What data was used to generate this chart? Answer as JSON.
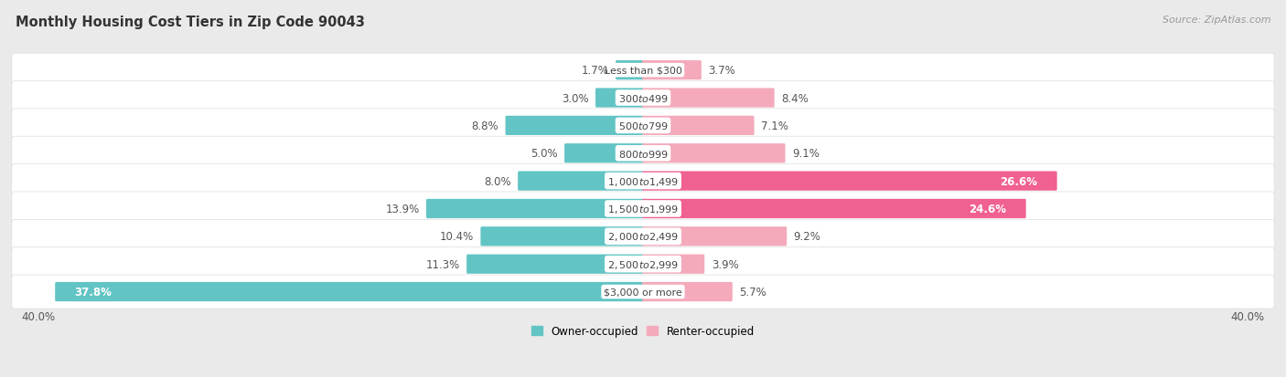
{
  "title": "Monthly Housing Cost Tiers in Zip Code 90043",
  "source": "Source: ZipAtlas.com",
  "categories": [
    "Less than $300",
    "$300 to $499",
    "$500 to $799",
    "$800 to $999",
    "$1,000 to $1,499",
    "$1,500 to $1,999",
    "$2,000 to $2,499",
    "$2,500 to $2,999",
    "$3,000 or more"
  ],
  "owner_values": [
    1.7,
    3.0,
    8.8,
    5.0,
    8.0,
    13.9,
    10.4,
    11.3,
    37.8
  ],
  "renter_values": [
    3.7,
    8.4,
    7.1,
    9.1,
    26.6,
    24.6,
    9.2,
    3.9,
    5.7
  ],
  "owner_color": "#62C4C4",
  "renter_color_light": "#F4AABB",
  "renter_color_dark": "#F06090",
  "renter_threshold": 20.0,
  "bg_color": "#EAEAEA",
  "row_bg_color": "#F5F5F5",
  "axis_limit": 40.0,
  "legend_owner": "Owner-occupied",
  "legend_renter": "Renter-occupied",
  "title_fontsize": 10.5,
  "label_fontsize": 8.5,
  "category_fontsize": 8.0,
  "axis_label_fontsize": 8.5,
  "source_fontsize": 8.0
}
